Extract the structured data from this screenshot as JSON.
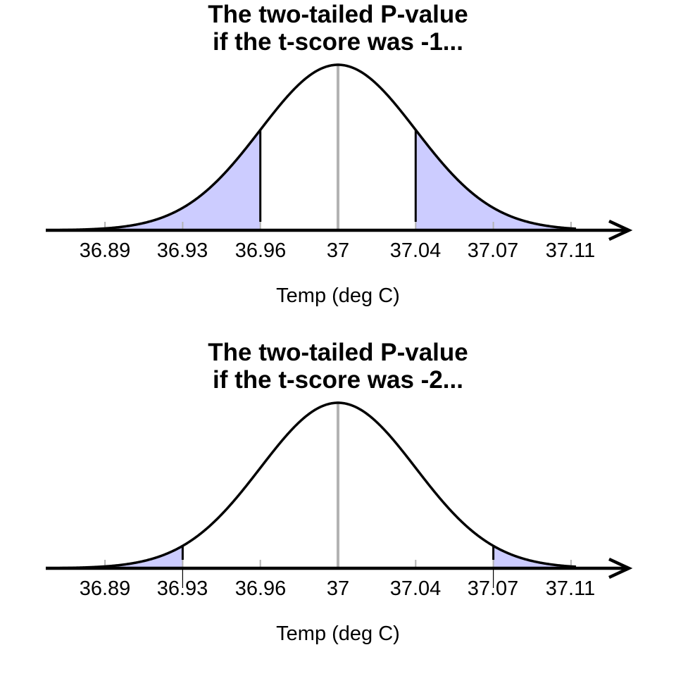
{
  "chart_data": [
    {
      "type": "area",
      "title": "The two-tailed P-value if the t-score was -1...",
      "title_lines": [
        "The two-tailed P-value",
        "if the t-score was -1..."
      ],
      "xlabel": "Temp (deg C)",
      "ylabel": "",
      "x_ticks": [
        "36.89",
        "36.93",
        "36.96",
        "37",
        "37.04",
        "37.07",
        "37.11"
      ],
      "distribution": "normal",
      "mean": 37,
      "sd_in_ticks": 1,
      "t_score": -1,
      "shaded_regions": [
        {
          "from": "-inf",
          "to": 36.96,
          "label": "lower tail"
        },
        {
          "from": 37.04,
          "to": "inf",
          "label": "upper tail"
        }
      ],
      "cutoffs": [
        36.96,
        37.04
      ],
      "center_line": 37,
      "shade_color": "#ccccff",
      "grid": false,
      "legend": null
    },
    {
      "type": "area",
      "title": "The two-tailed P-value if the t-score was -2...",
      "title_lines": [
        "The two-tailed P-value",
        "if the t-score was -2..."
      ],
      "xlabel": "Temp (deg C)",
      "ylabel": "",
      "x_ticks": [
        "36.89",
        "36.93",
        "36.96",
        "37",
        "37.04",
        "37.07",
        "37.11"
      ],
      "distribution": "normal",
      "mean": 37,
      "sd_in_ticks": 1,
      "t_score": -2,
      "shaded_regions": [
        {
          "from": "-inf",
          "to": 36.93,
          "label": "lower tail"
        },
        {
          "from": 37.07,
          "to": "inf",
          "label": "upper tail"
        }
      ],
      "cutoffs": [
        36.93,
        37.07
      ],
      "center_line": 37,
      "shade_color": "#ccccff",
      "grid": false,
      "legend": null
    }
  ],
  "plots": [
    {
      "title_line1": "The two-tailed P-value",
      "title_line2": "if the t-score was -1...",
      "ticks": [
        "36.89",
        "36.93",
        "36.96",
        "37",
        "37.04",
        "37.07",
        "37.11"
      ],
      "xlabel": "Temp (deg C)",
      "cut_sd": 1
    },
    {
      "title_line1": "The two-tailed P-value",
      "title_line2": "if the t-score was -2...",
      "ticks": [
        "36.89",
        "36.93",
        "36.96",
        "37",
        "37.04",
        "37.07",
        "37.11"
      ],
      "xlabel": "Temp (deg C)",
      "cut_sd": 2
    }
  ],
  "colors": {
    "shade": "#ccccff",
    "curve": "#000000",
    "center_line": "#b3b3b3",
    "tick": "#b3b3b3"
  }
}
